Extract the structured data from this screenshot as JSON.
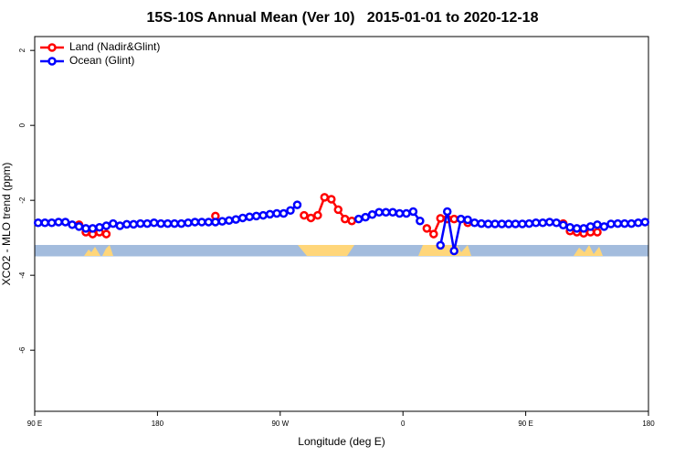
{
  "chart_data": {
    "type": "line",
    "title": "15S-10S Annual Mean (Ver 10)   2015-01-01 to 2020-12-18",
    "x_label": "Longitude (deg E)",
    "y_label": "XCO2 - MLO trend (ppm)",
    "xlim": [
      90,
      540
    ],
    "ylim": [
      -7.63,
      2.37
    ],
    "xticks": [
      {
        "value": 90,
        "label": "90 E"
      },
      180,
      {
        "value": 270,
        "label": "90 W"
      },
      {
        "value": 360,
        "label": "0"
      },
      {
        "value": 450,
        "label": "90 E"
      },
      {
        "value": 540,
        "label": "180"
      }
    ],
    "yticks": [
      2,
      0,
      -2,
      -4,
      -6
    ],
    "legend": "top-left",
    "x": [
      92.5,
      97.5,
      102.5,
      107.5,
      112.5,
      117.5,
      122.5,
      127.5,
      132.5,
      137.5,
      142.5,
      147.5,
      152.5,
      157.5,
      162.5,
      167.5,
      172.5,
      177.5,
      182.5,
      187.5,
      192.5,
      197.5,
      202.5,
      207.5,
      212.5,
      217.5,
      222.5,
      227.5,
      232.5,
      237.5,
      242.5,
      247.5,
      252.5,
      257.5,
      262.5,
      267.5,
      272.5,
      277.5,
      282.5,
      287.5,
      292.5,
      297.5,
      302.5,
      307.5,
      312.5,
      317.5,
      322.5,
      327.5,
      332.5,
      337.5,
      342.5,
      347.5,
      352.5,
      357.5,
      362.5,
      367.5,
      372.5,
      377.5,
      382.5,
      387.5,
      392.5,
      397.5,
      402.5,
      407.5,
      412.5,
      417.5,
      422.5,
      427.5,
      432.5,
      437.5,
      442.5,
      447.5,
      452.5,
      457.5,
      462.5,
      467.5,
      472.5,
      477.5,
      482.5,
      487.5,
      492.5,
      497.5,
      502.5,
      507.5,
      512.5,
      517.5,
      522.5,
      527.5,
      532.5,
      537.5
    ],
    "series": [
      {
        "name": "Land (Nadir&Glint)",
        "color": "#ff0000",
        "values": [
          null,
          null,
          null,
          null,
          null,
          null,
          -2.65,
          -2.85,
          -2.9,
          -2.85,
          -2.9,
          null,
          null,
          null,
          null,
          null,
          null,
          null,
          null,
          null,
          null,
          null,
          null,
          null,
          null,
          null,
          -2.42,
          null,
          null,
          null,
          null,
          null,
          null,
          null,
          null,
          null,
          null,
          null,
          null,
          -2.4,
          -2.47,
          -2.4,
          -1.92,
          -1.97,
          -2.25,
          -2.5,
          -2.55,
          null,
          null,
          null,
          null,
          null,
          null,
          null,
          null,
          null,
          null,
          -2.75,
          -2.9,
          -2.48,
          -2.5,
          -2.5,
          null,
          -2.6,
          null,
          null,
          null,
          null,
          null,
          null,
          null,
          null,
          null,
          null,
          null,
          null,
          null,
          -2.62,
          -2.82,
          -2.85,
          -2.88,
          -2.85,
          -2.85,
          null,
          null,
          null,
          null,
          null,
          null,
          null
        ]
      },
      {
        "name": "Ocean (Glint)",
        "color": "#0000ff",
        "values": [
          -2.6,
          -2.6,
          -2.6,
          -2.58,
          -2.58,
          -2.65,
          -2.7,
          -2.75,
          -2.75,
          -2.72,
          -2.68,
          -2.62,
          -2.68,
          -2.64,
          -2.64,
          -2.62,
          -2.62,
          -2.6,
          -2.62,
          -2.62,
          -2.62,
          -2.62,
          -2.6,
          -2.58,
          -2.58,
          -2.58,
          -2.58,
          -2.56,
          -2.54,
          -2.51,
          -2.47,
          -2.44,
          -2.42,
          -2.4,
          -2.37,
          -2.35,
          -2.35,
          -2.27,
          -2.12,
          null,
          null,
          null,
          null,
          null,
          null,
          null,
          null,
          -2.5,
          -2.45,
          -2.38,
          -2.32,
          -2.32,
          -2.32,
          -2.35,
          -2.35,
          -2.3,
          -2.55,
          null,
          null,
          -3.2,
          -2.3,
          -3.35,
          -2.5,
          -2.52,
          -2.6,
          -2.62,
          -2.63,
          -2.63,
          -2.63,
          -2.63,
          -2.63,
          -2.63,
          -2.62,
          -2.6,
          -2.6,
          -2.58,
          -2.6,
          -2.66,
          -2.72,
          -2.75,
          -2.75,
          -2.7,
          -2.65,
          -2.7,
          -2.63,
          -2.62,
          -2.62,
          -2.62,
          -2.6,
          -2.58
        ]
      }
    ]
  }
}
